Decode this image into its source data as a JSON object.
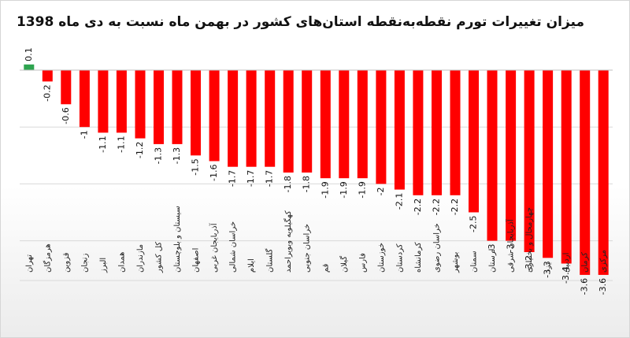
{
  "chart_data": {
    "type": "bar",
    "title": "میزان تغییرات تورم نقطه‌به‌نقطه استان‌های کشور در بهمن ماه نسبت به دی ماه 1398",
    "xlabel": "",
    "ylabel": "",
    "ylim": [
      -3.7,
      0.2
    ],
    "grid": true,
    "colors": {
      "positive": "#2ea44f",
      "negative": "#ff0000",
      "grid": "#d9d9d9",
      "baseline": "#bfbfbf"
    },
    "categories": [
      "تهران",
      "هرمزگان",
      "قزوین",
      "زنجان",
      "البرز",
      "همدان",
      "مازندران",
      "کل کشور",
      "سیستان و بلوچستان",
      "اصفهان",
      "آذربایجان غربی",
      "خراسان شمالی",
      "ایلام",
      "گلستان",
      "کهگیلویه وبویراحمد",
      "خراسان جنوبی",
      "قم",
      "گیلان",
      "فارس",
      "خوزستان",
      "کردستان",
      "کرمانشاه",
      "خراسان رضوی",
      "بوشهر",
      "سمنان",
      "لرستان",
      "آذربایجان شرقی",
      "چهارمحال و بختیاری",
      "یزد",
      "اردبیل",
      "کرمان",
      "مرکزی"
    ],
    "values": [
      0.1,
      -0.2,
      -0.6,
      -1,
      -1.1,
      -1.1,
      -1.2,
      -1.3,
      -1.3,
      -1.5,
      -1.6,
      -1.7,
      -1.7,
      -1.7,
      -1.8,
      -1.8,
      -1.9,
      -1.9,
      -1.9,
      -2,
      -2.1,
      -2.2,
      -2.2,
      -2.2,
      -2.5,
      -3,
      -3,
      -3.2,
      -3.3,
      -3.4,
      -3.6,
      -3.6
    ],
    "data_labels": [
      "0.1",
      "-0.2",
      "-0.6",
      "-1",
      "-1.1",
      "-1.1",
      "-1.2",
      "-1.3",
      "-1.3",
      "-1.5",
      "-1.6",
      "-1.7",
      "-1.7",
      "-1.7",
      "-1.8",
      "-1.8",
      "-1.9",
      "-1.9",
      "-1.9",
      "-2",
      "-2.1",
      "-2.2",
      "-2.2",
      "-2.2",
      "-2.5",
      "-3",
      "-3",
      "-3.2",
      "-3.3",
      "-3.4",
      "-3.6",
      "-3.6"
    ]
  }
}
